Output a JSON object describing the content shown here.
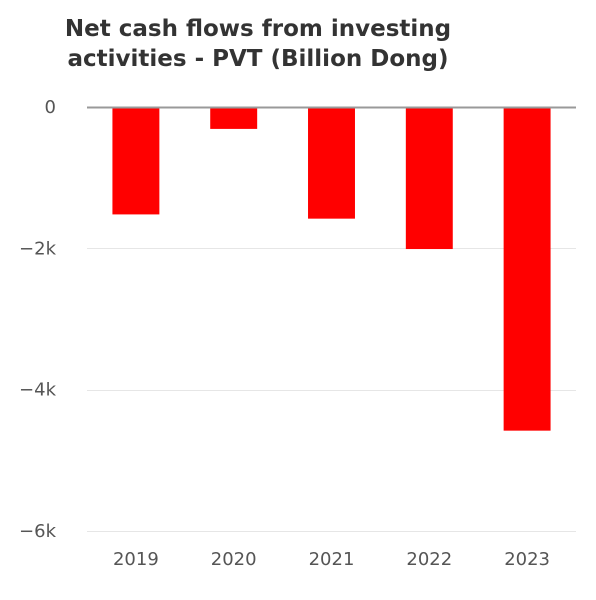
{
  "chart_data": {
    "type": "bar",
    "title": [
      "Net cash flows from investing",
      "activities - PVT (Billion Dong)"
    ],
    "xlabel": "",
    "ylabel": "",
    "categories": [
      "2019",
      "2020",
      "2021",
      "2022",
      "2023"
    ],
    "values": [
      -1520,
      -310,
      -1580,
      -2010,
      -4580
    ],
    "ylim": [
      -6000,
      0
    ],
    "yticks": [
      0,
      -2000,
      -4000,
      -6000
    ],
    "ytick_labels": [
      "0",
      "−2k",
      "−4k",
      "−6k"
    ],
    "grid": true,
    "legend": "none",
    "bar_color": "#ff0000",
    "grid_color": "#e6e6e6",
    "zero_line_color": "#999999"
  }
}
